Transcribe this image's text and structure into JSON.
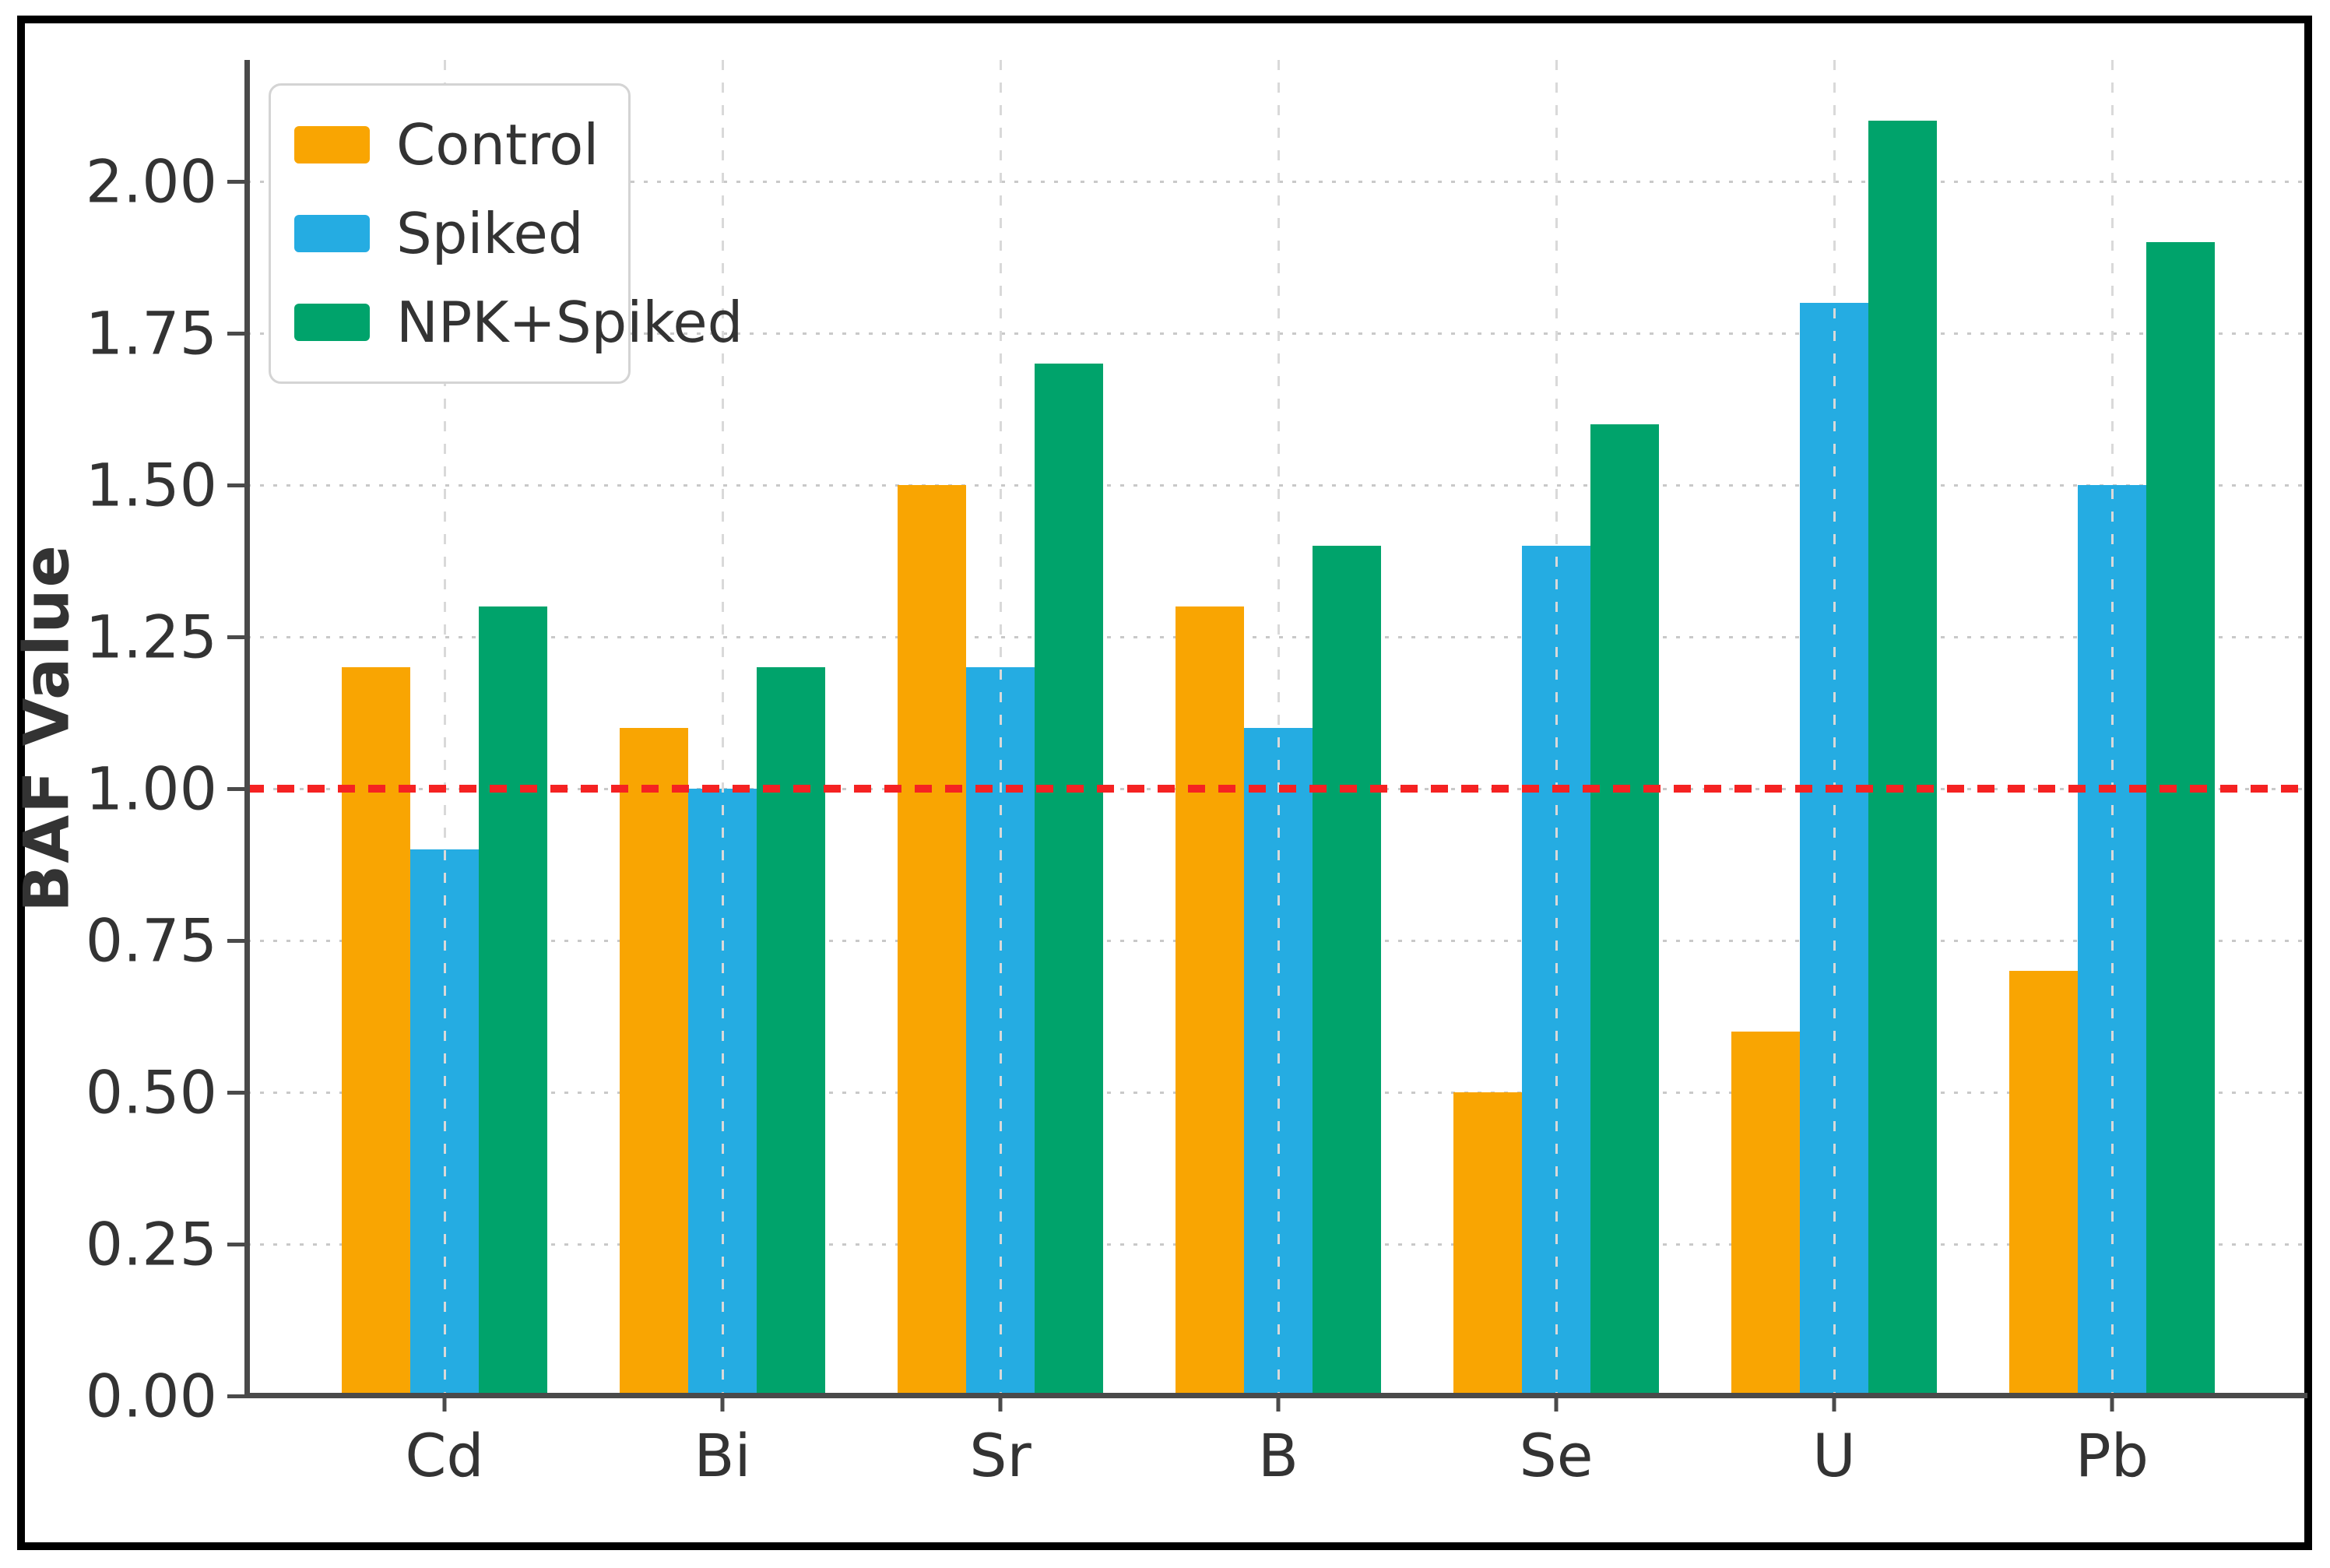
{
  "figure": {
    "background": "#ffffff",
    "frame_color": "#000000"
  },
  "chart_data": {
    "type": "bar",
    "title": "",
    "categories": [
      "Cd",
      "Bi",
      "Sr",
      "B",
      "Se",
      "U",
      "Pb"
    ],
    "series": [
      {
        "name": "Control",
        "color": "#F9A502",
        "values": [
          1.2,
          1.1,
          1.5,
          1.3,
          0.5,
          0.6,
          0.7
        ]
      },
      {
        "name": "Spiked",
        "color": "#25ACE2",
        "values": [
          0.9,
          1.0,
          1.2,
          1.1,
          1.4,
          1.8,
          1.5
        ]
      },
      {
        "name": "NPK+Spiked",
        "color": "#00A36B",
        "values": [
          1.3,
          1.2,
          1.7,
          1.4,
          1.6,
          2.1,
          1.9
        ]
      }
    ],
    "xlabel": "",
    "ylabel": "BAF Value",
    "ylim": [
      0,
      2.2
    ],
    "yticks": {
      "values": [
        0,
        0.25,
        0.5,
        0.75,
        1.0,
        1.25,
        1.5,
        1.75,
        2.0
      ],
      "labels": [
        "0.00",
        "0.25",
        "0.50",
        "0.75",
        "1.00",
        "1.25",
        "1.50",
        "1.75",
        "2.00"
      ]
    },
    "reference_line": {
      "value": 1.0,
      "color": "#f52222",
      "style": "dashed"
    },
    "grid": {
      "horizontal": "dotted",
      "vertical": "dashed",
      "color": "#c9c9c9"
    },
    "legend": {
      "position": "upper-left"
    },
    "axis_color": "#4a4a4a",
    "tick_text_color": "#333333"
  }
}
